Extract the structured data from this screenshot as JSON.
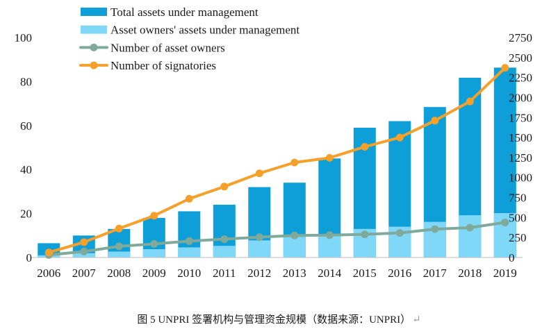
{
  "chart_data": {
    "type": "bar",
    "categories": [
      "2006",
      "2007",
      "2008",
      "2009",
      "2010",
      "2011",
      "2012",
      "2013",
      "2014",
      "2015",
      "2016",
      "2017",
      "2018",
      "2019"
    ],
    "series": [
      {
        "name": "Total assets under management",
        "kind": "bar",
        "axis": "left",
        "color": "#0f9fd8",
        "values": [
          6.5,
          10,
          13,
          18,
          21,
          24,
          32,
          34,
          45,
          59,
          62,
          68.4,
          81.7,
          86.3
        ]
      },
      {
        "name": "Asset owners' assets under management",
        "kind": "bar",
        "axis": "left",
        "color": "#7fd8f7",
        "values": [
          1,
          2,
          2.7,
          3.8,
          4.6,
          5.3,
          7.8,
          9.4,
          10.5,
          13,
          14,
          16.2,
          19.2,
          20.2
        ]
      },
      {
        "name": "Number of asset owners",
        "kind": "line",
        "axis": "right",
        "color": "#7fa99b",
        "values": [
          32,
          75,
          140,
          170,
          205,
          230,
          255,
          275,
          280,
          290,
          307,
          355,
          373,
          438
        ]
      },
      {
        "name": "Number of signatories",
        "kind": "line",
        "axis": "right",
        "color": "#f5a02a",
        "values": [
          63,
          192,
          362,
          523,
          734,
          887,
          1052,
          1188,
          1246,
          1384,
          1500,
          1711,
          1951,
          2370
        ]
      }
    ],
    "y_left": {
      "ylim": [
        0,
        100
      ],
      "ticks": [
        "0",
        "20",
        "40",
        "60",
        "80",
        "100"
      ]
    },
    "y_right": {
      "ylim": [
        0,
        2750
      ],
      "ticks": [
        "0",
        "250",
        "500",
        "750",
        "1000",
        "1250",
        "1500",
        "1750",
        "2000",
        "2250",
        "2500",
        "2750"
      ]
    },
    "legend": {
      "position": "top-left"
    },
    "grid": false
  },
  "caption": {
    "text": "图 5 UNPRI 签署机构与管理资金规模（数据来源：UNPRI）",
    "return_mark": "↵"
  }
}
